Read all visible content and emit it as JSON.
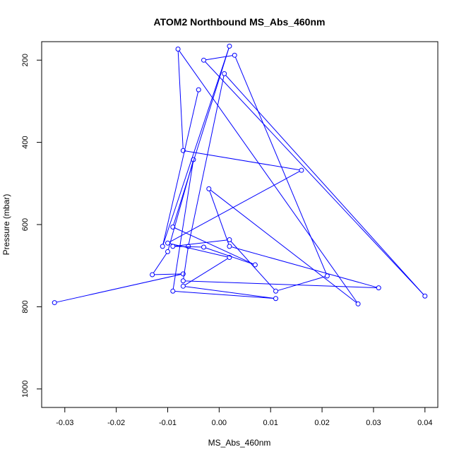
{
  "chart_data": {
    "type": "line",
    "title": "ATOM2 Northbound MS_Abs_460nm",
    "xlabel": "MS_Abs_460nm",
    "ylabel": "Pressure (mbar)",
    "xlim": [
      -0.0345,
      0.0425
    ],
    "ylim": [
      1045,
      155
    ],
    "y_reversed": true,
    "x_ticks": [
      -0.03,
      -0.02,
      -0.01,
      0.0,
      0.01,
      0.02,
      0.03,
      0.04
    ],
    "x_tick_labels": [
      "-0.03",
      "-0.02",
      "-0.01",
      "0.00",
      "0.01",
      "0.02",
      "0.03",
      "0.04"
    ],
    "y_ticks": [
      200,
      400,
      600,
      800,
      1000
    ],
    "y_tick_labels": [
      "200",
      "400",
      "600",
      "800",
      "1000"
    ],
    "series": [
      {
        "color": "#0000ff",
        "marker": "open-circle",
        "points": [
          [
            -0.032,
            790
          ],
          [
            -0.007,
            720
          ],
          [
            -0.013,
            722
          ],
          [
            -0.01,
            666
          ],
          [
            -0.005,
            442
          ],
          [
            -0.009,
            762
          ],
          [
            0.011,
            780
          ],
          [
            -0.007,
            750
          ],
          [
            0.002,
            680
          ],
          [
            -0.01,
            645
          ],
          [
            0.016,
            468
          ],
          [
            -0.007,
            420
          ],
          [
            -0.008,
            173
          ],
          [
            0.027,
            793
          ],
          [
            -0.002,
            513
          ],
          [
            0.002,
            653
          ],
          [
            0.031,
            754
          ],
          [
            -0.007,
            737
          ],
          [
            -0.006,
            653
          ],
          [
            0.001,
            233
          ],
          [
            0.04,
            774
          ],
          [
            -0.003,
            200
          ],
          [
            0.003,
            188
          ],
          [
            0.021,
            725
          ],
          [
            0.011,
            762
          ],
          [
            0.002,
            637
          ],
          [
            -0.009,
            653
          ],
          [
            -0.003,
            655
          ],
          [
            0.007,
            698
          ],
          [
            -0.009,
            606
          ],
          [
            0.002,
            166
          ],
          [
            -0.011,
            653
          ],
          [
            -0.004,
            272
          ]
        ]
      }
    ]
  }
}
